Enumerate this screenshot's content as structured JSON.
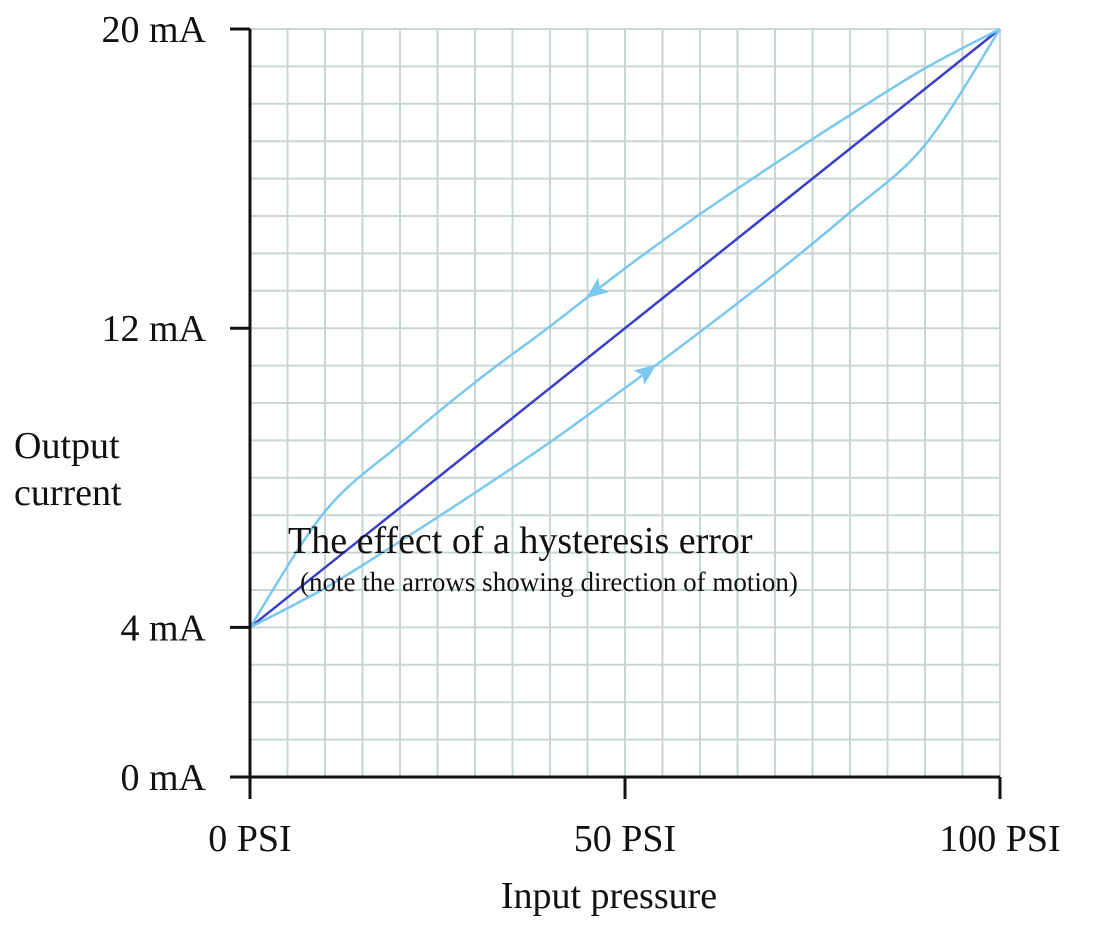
{
  "chart_data": {
    "type": "line",
    "title": "",
    "xlabel": "Input pressure",
    "ylabel": [
      "Output",
      "current"
    ],
    "xlim": [
      0,
      100
    ],
    "ylim": [
      0,
      20
    ],
    "x_ticks": [
      {
        "value": 0,
        "label": "0 PSI"
      },
      {
        "value": 50,
        "label": "50 PSI"
      },
      {
        "value": 100,
        "label": "100 PSI"
      }
    ],
    "y_ticks": [
      {
        "value": 0,
        "label": "0 mA"
      },
      {
        "value": 4,
        "label": "4 mA"
      },
      {
        "value": 12,
        "label": "12 mA"
      },
      {
        "value": 20,
        "label": "20 mA"
      }
    ],
    "grid": true,
    "grid_minor_x_step": 5,
    "grid_minor_y_step": 1,
    "series": [
      {
        "name": "",
        "role": "ideal",
        "color": "#3a3fc8",
        "x": [
          0,
          100
        ],
        "y": [
          4,
          20
        ]
      },
      {
        "name": "",
        "role": "increasing",
        "color": "#7ac8ee",
        "arrow_direction": "up",
        "arrow_at_x": 53,
        "x": [
          0,
          10,
          20,
          30,
          40,
          50,
          60,
          70,
          80,
          90,
          100
        ],
        "y": [
          4,
          5.05,
          6.3,
          7.6,
          8.95,
          10.4,
          11.9,
          13.45,
          15.1,
          16.9,
          20
        ]
      },
      {
        "name": "",
        "role": "decreasing",
        "color": "#7ac8ee",
        "arrow_direction": "down",
        "arrow_at_x": 46,
        "x": [
          0,
          10,
          20,
          30,
          40,
          50,
          60,
          70,
          80,
          90,
          100
        ],
        "y": [
          4,
          7.1,
          8.9,
          10.55,
          12.05,
          13.6,
          15.05,
          16.4,
          17.7,
          18.95,
          20
        ]
      }
    ],
    "annotations": [
      {
        "text": "The effect of a hysteresis error",
        "style": "title"
      },
      {
        "text": "(note the arrows showing direction of motion)",
        "style": "subtitle"
      }
    ]
  },
  "colors": {
    "axis": "#111111",
    "grid": "#c8d6d6",
    "ideal_line": "#3a3fc8",
    "hysteresis_curve": "#7ac8ee"
  }
}
